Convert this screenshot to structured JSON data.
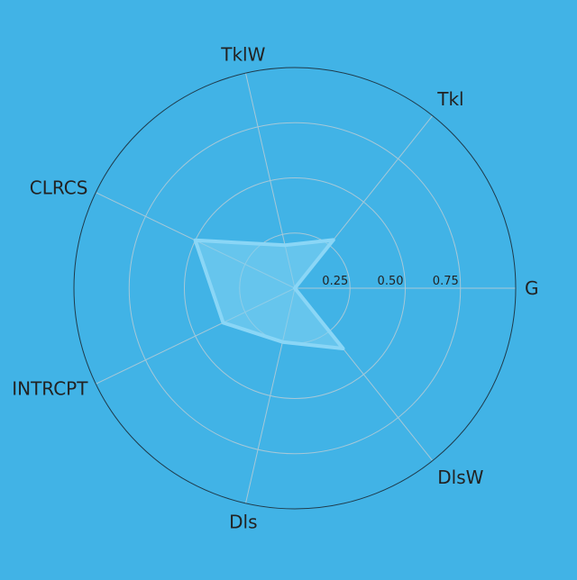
{
  "chart_data": {
    "type": "radar",
    "title": "",
    "axes": [
      "G",
      "Tkl",
      "TklW",
      "CLRCS",
      "INTRCPT",
      "Dls",
      "DlsW"
    ],
    "series": [
      {
        "values": [
          0.0,
          0.28,
          0.2,
          0.5,
          0.36,
          0.25,
          0.35
        ]
      }
    ],
    "rlim": [
      0,
      1
    ],
    "ticks": [
      0.25,
      0.5,
      0.75
    ],
    "tick_labels": [
      "0.25",
      "0.50",
      "0.75"
    ],
    "grid": true,
    "colors": {
      "background": "#41b3e6",
      "fill": "#7fd0f2",
      "stroke": "#8ad6f6",
      "grid": "#a6c8d8",
      "outer_ring": "#1f3a4a",
      "text": "#222222"
    }
  }
}
